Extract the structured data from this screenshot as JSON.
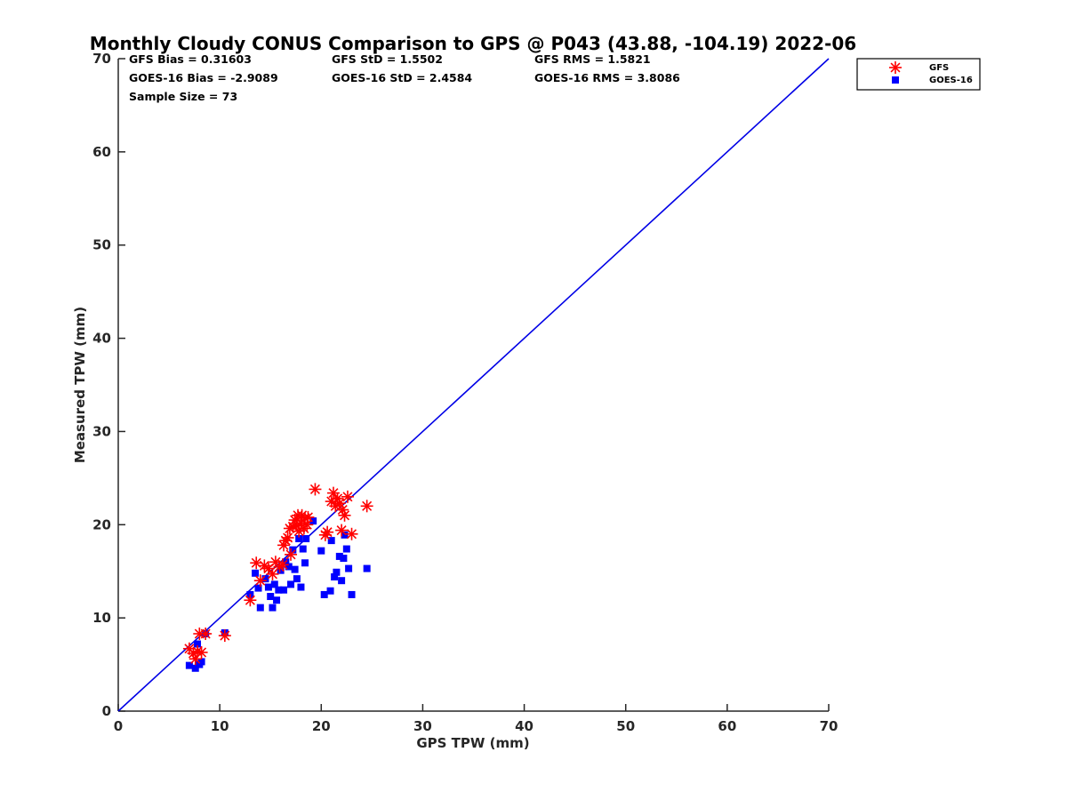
{
  "chart_data": {
    "type": "scatter",
    "title": "Monthly Cloudy CONUS Comparison to GPS @ P043 (43.88, -104.19) 2022-06",
    "xlabel": "GPS TPW (mm)",
    "ylabel": "Measured TPW (mm)",
    "xlim": [
      0,
      70
    ],
    "ylim": [
      0,
      70
    ],
    "xticks": [
      0,
      10,
      20,
      30,
      40,
      50,
      60,
      70
    ],
    "yticks": [
      0,
      10,
      20,
      30,
      40,
      50,
      60,
      70
    ],
    "grid": false,
    "legend_position": "top-right-outside",
    "stats": {
      "row1": [
        "GFS Bias = 0.31603",
        "GFS StD = 1.5502",
        "GFS RMS = 1.5821"
      ],
      "row2": [
        "GOES-16 Bias = -2.9089",
        "GOES-16 StD = 2.4584",
        "GOES-16 RMS = 3.8086"
      ],
      "row3": [
        "Sample Size = 73"
      ]
    },
    "reference_line": {
      "from": [
        0,
        0
      ],
      "to": [
        70,
        70
      ],
      "color": "#0000e6"
    },
    "series": [
      {
        "name": "GFS",
        "marker": "asterisk",
        "color": "#ff0000",
        "points": [
          [
            7.0,
            6.7
          ],
          [
            7.4,
            6.2
          ],
          [
            7.6,
            5.6
          ],
          [
            7.8,
            6.4
          ],
          [
            8.0,
            8.3
          ],
          [
            8.2,
            6.3
          ],
          [
            8.6,
            8.3
          ],
          [
            10.5,
            8.1
          ],
          [
            13.0,
            11.9
          ],
          [
            13.6,
            15.9
          ],
          [
            14.0,
            14.0
          ],
          [
            14.4,
            15.6
          ],
          [
            14.8,
            15.3
          ],
          [
            15.2,
            14.7
          ],
          [
            15.5,
            16.0
          ],
          [
            15.9,
            15.5
          ],
          [
            16.2,
            15.7
          ],
          [
            16.3,
            17.8
          ],
          [
            16.5,
            18.3
          ],
          [
            16.7,
            18.6
          ],
          [
            16.9,
            19.6
          ],
          [
            17.0,
            16.8
          ],
          [
            17.2,
            19.8
          ],
          [
            17.4,
            20.5
          ],
          [
            17.6,
            19.9
          ],
          [
            17.7,
            21.0
          ],
          [
            17.8,
            19.3
          ],
          [
            18.0,
            20.2
          ],
          [
            18.1,
            21.0
          ],
          [
            18.3,
            19.6
          ],
          [
            18.4,
            20.7
          ],
          [
            18.6,
            20.0
          ],
          [
            18.7,
            20.8
          ],
          [
            19.4,
            23.8
          ],
          [
            20.4,
            18.9
          ],
          [
            20.6,
            19.2
          ],
          [
            21.0,
            22.5
          ],
          [
            21.2,
            23.4
          ],
          [
            21.4,
            22.0
          ],
          [
            21.6,
            22.8
          ],
          [
            21.8,
            22.3
          ],
          [
            22.0,
            19.4
          ],
          [
            22.1,
            21.6
          ],
          [
            22.3,
            21.0
          ],
          [
            22.6,
            23.0
          ],
          [
            23.0,
            19.0
          ],
          [
            24.5,
            22.0
          ]
        ]
      },
      {
        "name": "GOES-16",
        "marker": "square",
        "color": "#0000ff",
        "points": [
          [
            7.0,
            4.9
          ],
          [
            7.6,
            4.6
          ],
          [
            7.8,
            7.2
          ],
          [
            8.0,
            5.0
          ],
          [
            8.2,
            5.3
          ],
          [
            8.6,
            8.3
          ],
          [
            10.5,
            8.4
          ],
          [
            13.0,
            12.5
          ],
          [
            13.5,
            14.8
          ],
          [
            13.8,
            13.2
          ],
          [
            14.0,
            11.1
          ],
          [
            14.5,
            14.2
          ],
          [
            14.8,
            13.3
          ],
          [
            15.0,
            12.3
          ],
          [
            15.2,
            11.1
          ],
          [
            15.4,
            13.6
          ],
          [
            15.6,
            11.9
          ],
          [
            15.8,
            13.0
          ],
          [
            16.0,
            15.1
          ],
          [
            16.3,
            13.0
          ],
          [
            16.5,
            16.0
          ],
          [
            16.8,
            15.5
          ],
          [
            17.0,
            13.6
          ],
          [
            17.2,
            17.3
          ],
          [
            17.4,
            15.2
          ],
          [
            17.6,
            14.2
          ],
          [
            17.8,
            18.5
          ],
          [
            18.0,
            13.3
          ],
          [
            18.2,
            17.4
          ],
          [
            18.4,
            15.9
          ],
          [
            18.5,
            18.5
          ],
          [
            19.2,
            20.4
          ],
          [
            20.0,
            17.2
          ],
          [
            20.3,
            12.5
          ],
          [
            20.9,
            12.9
          ],
          [
            21.0,
            18.3
          ],
          [
            21.3,
            14.4
          ],
          [
            21.5,
            14.9
          ],
          [
            21.8,
            16.6
          ],
          [
            22.0,
            14.0
          ],
          [
            22.2,
            16.4
          ],
          [
            22.3,
            18.9
          ],
          [
            22.5,
            17.4
          ],
          [
            22.7,
            15.3
          ],
          [
            23.0,
            12.5
          ],
          [
            24.5,
            15.3
          ]
        ]
      }
    ]
  }
}
